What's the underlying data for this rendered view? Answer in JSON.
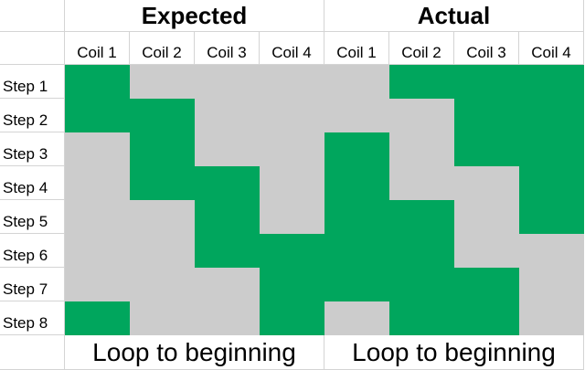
{
  "sections": [
    {
      "title": "Expected",
      "loop_label": "Loop to beginning"
    },
    {
      "title": "Actual",
      "loop_label": "Loop to beginning"
    }
  ],
  "coil_labels": [
    "Coil 1",
    "Coil 2",
    "Coil 3",
    "Coil 4",
    "Coil 1",
    "Coil 2",
    "Coil 3",
    "Coil 4"
  ],
  "steps": [
    "Step 1",
    "Step 2",
    "Step 3",
    "Step 4",
    "Step 5",
    "Step 6",
    "Step 7",
    "Step 8"
  ],
  "colors": {
    "active": "#00a65d",
    "inactive": "#cccccc"
  },
  "expected_pattern": [
    [
      1,
      0,
      0,
      0
    ],
    [
      1,
      1,
      0,
      0
    ],
    [
      0,
      1,
      0,
      0
    ],
    [
      0,
      1,
      1,
      0
    ],
    [
      0,
      0,
      1,
      0
    ],
    [
      0,
      0,
      1,
      1
    ],
    [
      0,
      0,
      0,
      1
    ],
    [
      1,
      0,
      0,
      1
    ]
  ],
  "actual_pattern": [
    [
      0,
      1,
      1,
      1
    ],
    [
      0,
      0,
      1,
      1
    ],
    [
      1,
      0,
      1,
      1
    ],
    [
      1,
      0,
      0,
      1
    ],
    [
      1,
      1,
      0,
      1
    ],
    [
      1,
      1,
      0,
      0
    ],
    [
      1,
      1,
      1,
      0
    ],
    [
      0,
      1,
      1,
      0
    ]
  ]
}
